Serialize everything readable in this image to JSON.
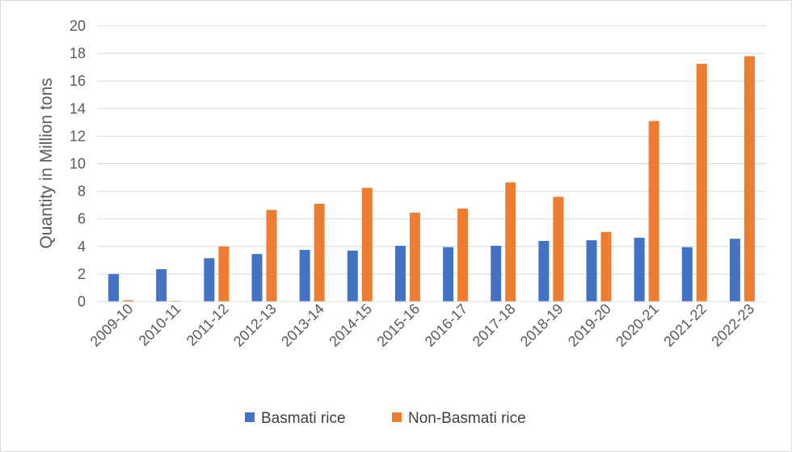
{
  "chart_data": {
    "type": "bar",
    "categories": [
      "2009-10",
      "2010-11",
      "2011-12",
      "2012-13",
      "2013-14",
      "2014-15",
      "2015-16",
      "2016-17",
      "2017-18",
      "2018-19",
      "2019-20",
      "2020-21",
      "2021-22",
      "2022-23"
    ],
    "series": [
      {
        "name": "Basmati rice",
        "color": "#4472c4",
        "values": [
          2.0,
          2.35,
          3.15,
          3.45,
          3.75,
          3.7,
          4.05,
          3.95,
          4.05,
          4.4,
          4.45,
          4.63,
          3.95,
          4.56
        ]
      },
      {
        "name": "Non-Basmati rice",
        "color": "#ed7d31",
        "values": [
          0.1,
          0.05,
          4.0,
          6.65,
          7.1,
          8.25,
          6.45,
          6.75,
          8.65,
          7.6,
          5.05,
          13.1,
          17.25,
          17.8
        ]
      }
    ],
    "title": "",
    "xlabel": "",
    "ylabel": "Quantity in Million tons",
    "ylim": [
      0,
      20
    ],
    "yticks": [
      "0",
      "2",
      "4",
      "6",
      "8",
      "10",
      "12",
      "14",
      "16",
      "18",
      "20"
    ],
    "grid": true,
    "legend_position": "bottom"
  }
}
